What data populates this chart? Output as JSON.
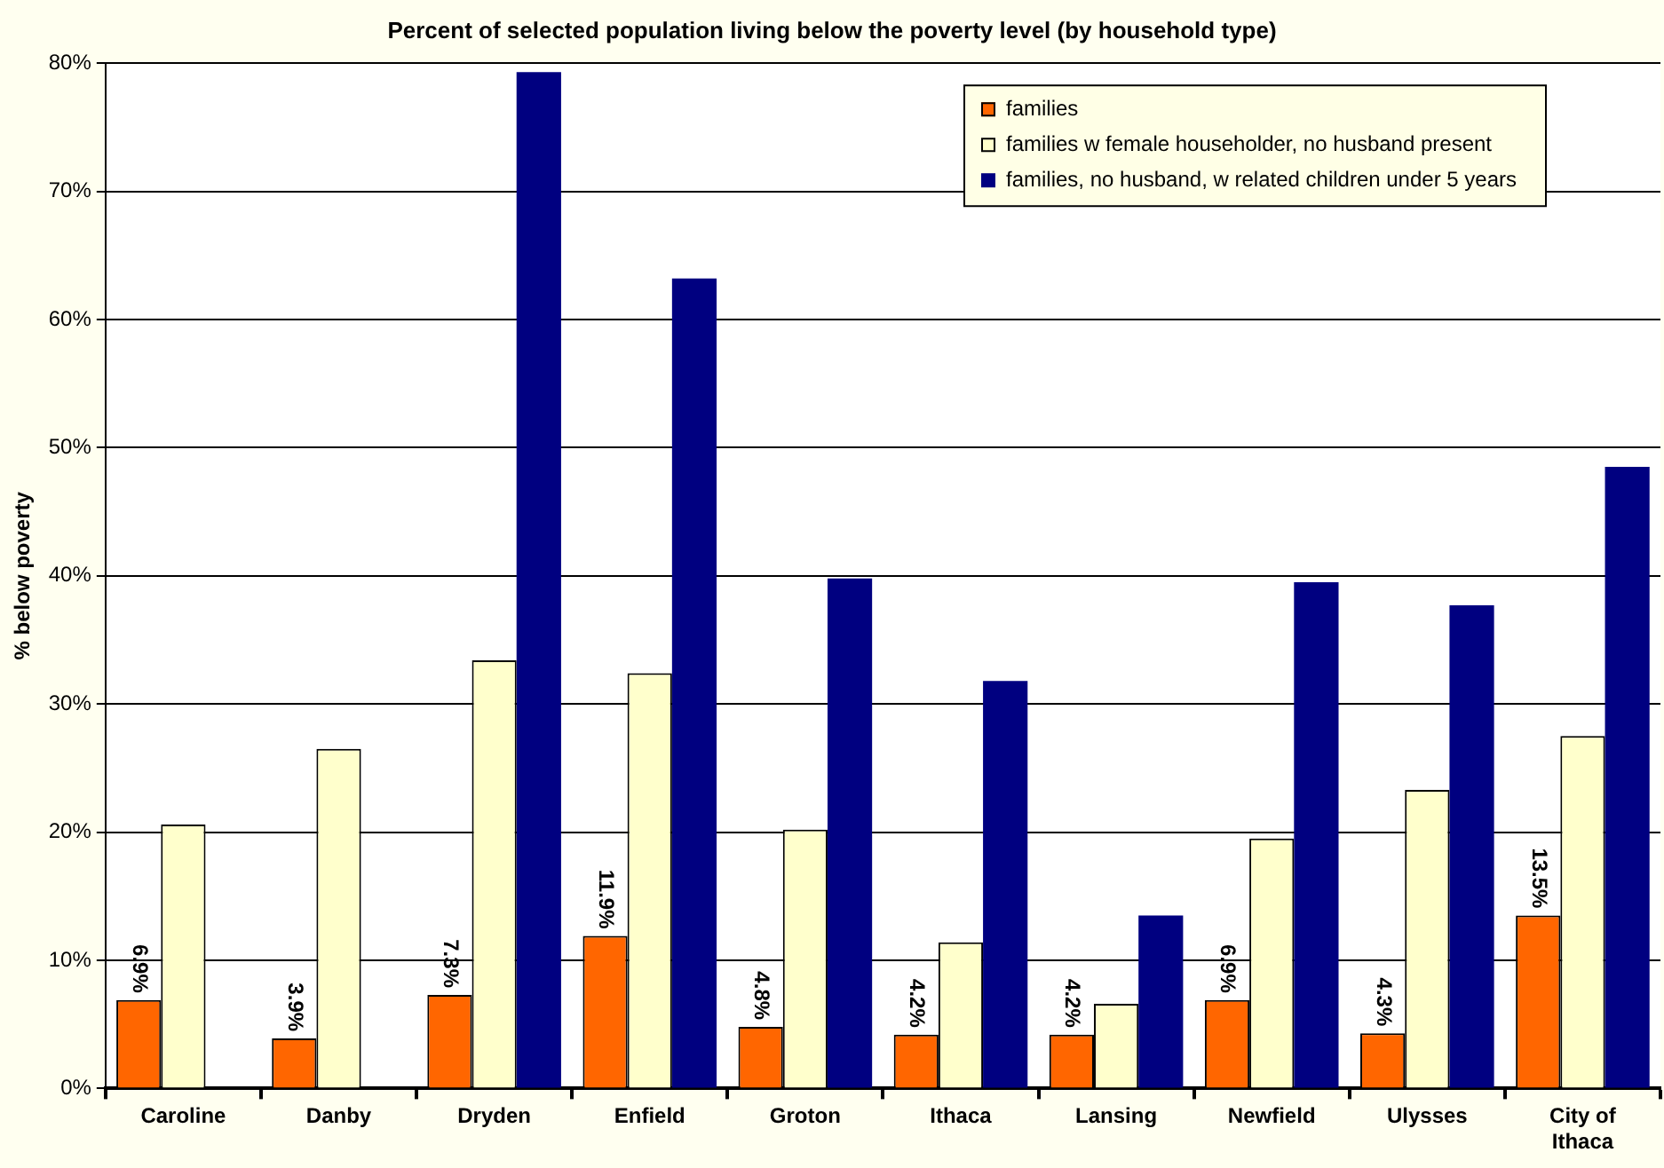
{
  "chart_data": {
    "type": "bar",
    "title": "Percent of selected population living below the poverty level (by household type)",
    "ylabel": "% below poverty",
    "categories": [
      "Caroline",
      "Danby",
      "Dryden",
      "Enfield",
      "Groton",
      "Ithaca",
      "Lansing",
      "Newfield",
      "Ulysses",
      "City of Ithaca"
    ],
    "series": [
      {
        "name": "families",
        "color": "#ff6600",
        "values": [
          6.9,
          3.9,
          7.3,
          11.9,
          4.8,
          4.2,
          4.2,
          6.9,
          4.3,
          13.5
        ],
        "value_labels": [
          "6.9%",
          "3.9%",
          "7.3%",
          "11.9%",
          "4.8%",
          "4.2%",
          "4.2%",
          "6.9%",
          "4.3%",
          "13.5%"
        ]
      },
      {
        "name": "families w female householder, no husband present",
        "color": "#ffffcc",
        "values": [
          20.6,
          26.5,
          33.4,
          32.4,
          20.2,
          11.4,
          6.6,
          19.5,
          23.3,
          27.5
        ]
      },
      {
        "name": "families, no husband, w related children under 5 years",
        "color": "#000080",
        "values": [
          null,
          null,
          79.3,
          63.2,
          39.8,
          31.8,
          13.5,
          39.5,
          37.7,
          48.5
        ]
      }
    ],
    "ylim": [
      0,
      80
    ],
    "yticks": [
      {
        "value": 0,
        "label": "0%"
      },
      {
        "value": 10,
        "label": "10%"
      },
      {
        "value": 20,
        "label": "20%"
      },
      {
        "value": 30,
        "label": "30%"
      },
      {
        "value": 40,
        "label": "40%"
      },
      {
        "value": 50,
        "label": "50%"
      },
      {
        "value": 60,
        "label": "60%"
      },
      {
        "value": 70,
        "label": "70%"
      },
      {
        "value": 80,
        "label": "80%"
      }
    ],
    "grid": "y",
    "legend": "top right"
  }
}
